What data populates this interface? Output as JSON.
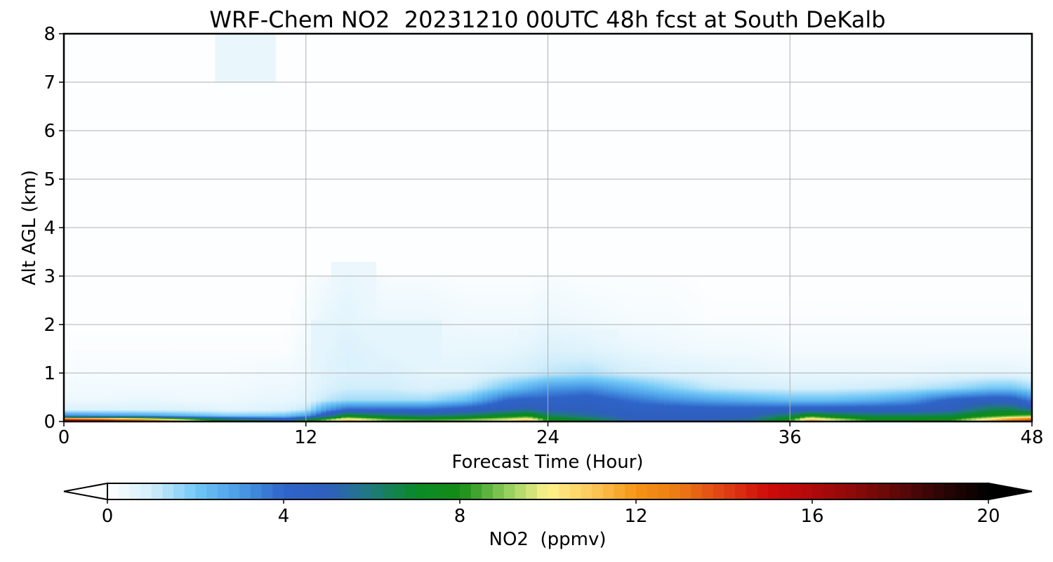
{
  "chart_data": {
    "type": "heatmap",
    "subtype": "time-height filled contour",
    "title": "WRF-Chem NO2  20231210 00UTC 48h fcst at South DeKalb",
    "xlabel": "Forecast Time (Hour)",
    "ylabel": "Alt AGL (km)",
    "xlim": [
      0,
      48
    ],
    "ylim": [
      0,
      8
    ],
    "x_ticks": [
      "0",
      "12",
      "24",
      "36",
      "48"
    ],
    "y_ticks": [
      "0",
      "1",
      "2",
      "3",
      "4",
      "5",
      "6",
      "7",
      "8"
    ],
    "grid": true,
    "colorbar": {
      "label": "NO2  (ppmv)",
      "range": [
        0,
        20
      ],
      "ticks": [
        "0",
        "4",
        "8",
        "12",
        "16",
        "20"
      ],
      "extend": "both",
      "colormap": [
        [
          0,
          "#ffffff"
        ],
        [
          1,
          "#d2eefb"
        ],
        [
          2,
          "#72c8f6"
        ],
        [
          3,
          "#4a9be6"
        ],
        [
          4,
          "#2f64c8"
        ],
        [
          5,
          "#2f5fbe"
        ],
        [
          6,
          "#1f7a7a"
        ],
        [
          7,
          "#0a8a28"
        ],
        [
          8,
          "#148c14"
        ],
        [
          9,
          "#8acb5a"
        ],
        [
          10,
          "#fff28c"
        ],
        [
          11,
          "#fbc85a"
        ],
        [
          12,
          "#f59414"
        ],
        [
          13,
          "#eb7814"
        ],
        [
          14,
          "#df4014"
        ],
        [
          15,
          "#cf0a0a"
        ],
        [
          16,
          "#b00a0a"
        ],
        [
          17,
          "#8a0a0a"
        ],
        [
          18,
          "#5a0808"
        ],
        [
          19,
          "#2a0505"
        ],
        [
          20,
          "#000000"
        ]
      ],
      "under_color": "#ffffff",
      "over_color": "#000000"
    },
    "time_hours": [
      0,
      2,
      4,
      6,
      8,
      10,
      11,
      12,
      13,
      14,
      16,
      18,
      20,
      22,
      23,
      24,
      26,
      28,
      30,
      32,
      34,
      36,
      37,
      38,
      40,
      42,
      44,
      46,
      47,
      48
    ],
    "profile_heights_km": [
      0.04,
      0.12,
      0.25,
      0.45,
      0.7,
      1.0,
      1.5,
      2.2,
      3.0
    ],
    "no2_profiles": [
      [
        16,
        3.5,
        0.8,
        0.4,
        0.3,
        0.2,
        0.1,
        0.05,
        0.05
      ],
      [
        15,
        3.2,
        0.8,
        0.4,
        0.3,
        0.2,
        0.1,
        0.05,
        0.05
      ],
      [
        13,
        3,
        0.8,
        0.5,
        0.3,
        0.2,
        0.1,
        0.05,
        0.05
      ],
      [
        10,
        2.5,
        0.8,
        0.4,
        0.3,
        0.2,
        0.1,
        0.05,
        0.05
      ],
      [
        7,
        2,
        0.6,
        0.4,
        0.3,
        0.2,
        0.1,
        0.05,
        0.05
      ],
      [
        6,
        2,
        0.7,
        0.5,
        0.4,
        0.3,
        0.1,
        0.05,
        0.05
      ],
      [
        5,
        2.2,
        0.8,
        0.5,
        0.4,
        0.3,
        0.1,
        0.05,
        0.05
      ],
      [
        7,
        3,
        1.2,
        0.6,
        0.5,
        0.4,
        0.3,
        0.2,
        0.1
      ],
      [
        9,
        5,
        3,
        1.2,
        0.8,
        0.7,
        0.6,
        0.5,
        0.3
      ],
      [
        11,
        7.5,
        4,
        1.5,
        1,
        0.8,
        0.8,
        0.6,
        0.5
      ],
      [
        9,
        6.5,
        4,
        1.5,
        1,
        0.8,
        0.6,
        0.4,
        0.2
      ],
      [
        8.5,
        6,
        4,
        1.5,
        0.8,
        0.6,
        0.5,
        0.4,
        0.2
      ],
      [
        9,
        6.5,
        4.5,
        2.2,
        1,
        0.6,
        0.5,
        0.3,
        0.1
      ],
      [
        10,
        7.5,
        5.2,
        4,
        2,
        0.9,
        0.5,
        0.3,
        0.1
      ],
      [
        11,
        8,
        5.5,
        4.2,
        2.5,
        1,
        0.6,
        0.3,
        0.1
      ],
      [
        8,
        6.5,
        5,
        4.2,
        3,
        1.2,
        0.8,
        0.4,
        0.2
      ],
      [
        7,
        5.5,
        5,
        4.5,
        3.2,
        1.4,
        0.7,
        0.3,
        0.1
      ],
      [
        5,
        5,
        4.5,
        3.8,
        2.5,
        1,
        0.5,
        0.2,
        0.1
      ],
      [
        5,
        5,
        4.5,
        3.2,
        1.8,
        0.8,
        0.4,
        0.2,
        0.1
      ],
      [
        5,
        5,
        4.4,
        2.8,
        1.2,
        0.7,
        0.3,
        0.1,
        0.05
      ],
      [
        5.5,
        5,
        4.4,
        2.5,
        1,
        0.6,
        0.3,
        0.1,
        0.05
      ],
      [
        8,
        6.5,
        4.5,
        2.2,
        0.9,
        0.5,
        0.2,
        0.1,
        0.05
      ],
      [
        11.5,
        8,
        4.6,
        2.2,
        0.9,
        0.5,
        0.2,
        0.1,
        0.05
      ],
      [
        10,
        7.2,
        4.6,
        2.2,
        0.9,
        0.5,
        0.2,
        0.1,
        0.05
      ],
      [
        8,
        6.5,
        4.6,
        2.5,
        1,
        0.5,
        0.2,
        0.1,
        0.05
      ],
      [
        8,
        6.5,
        4.6,
        3,
        1.2,
        0.5,
        0.2,
        0.1,
        0.05
      ],
      [
        8,
        6.8,
        5,
        4.2,
        1.5,
        0.6,
        0.2,
        0.1,
        0.05
      ],
      [
        11,
        8,
        6.5,
        4.6,
        2,
        0.6,
        0.2,
        0.1,
        0.05
      ],
      [
        13,
        8.5,
        6.5,
        4.5,
        2,
        0.6,
        0.2,
        0.1,
        0.05
      ],
      [
        14,
        9,
        5.5,
        3.5,
        1.5,
        0.5,
        0.2,
        0.1,
        0.05
      ]
    ],
    "upper_plumes": [
      {
        "x": [
          0,
          48
        ],
        "y": [
          0.42,
          0.42
        ],
        "value": 0.35
      },
      {
        "x": [
          12.3,
          18.8
        ],
        "y": [
          0.3,
          2.1
        ],
        "value": 0.6
      },
      {
        "x": [
          13.2,
          15.5
        ],
        "y": [
          0.6,
          3.3
        ],
        "value": 0.45
      },
      {
        "x": [
          22.5,
          27.5
        ],
        "y": [
          0.5,
          1.9
        ],
        "value": 0.5
      },
      {
        "x": [
          7.6,
          10.6
        ],
        "y": [
          7.0,
          8.0
        ],
        "value": 0.5
      }
    ]
  }
}
